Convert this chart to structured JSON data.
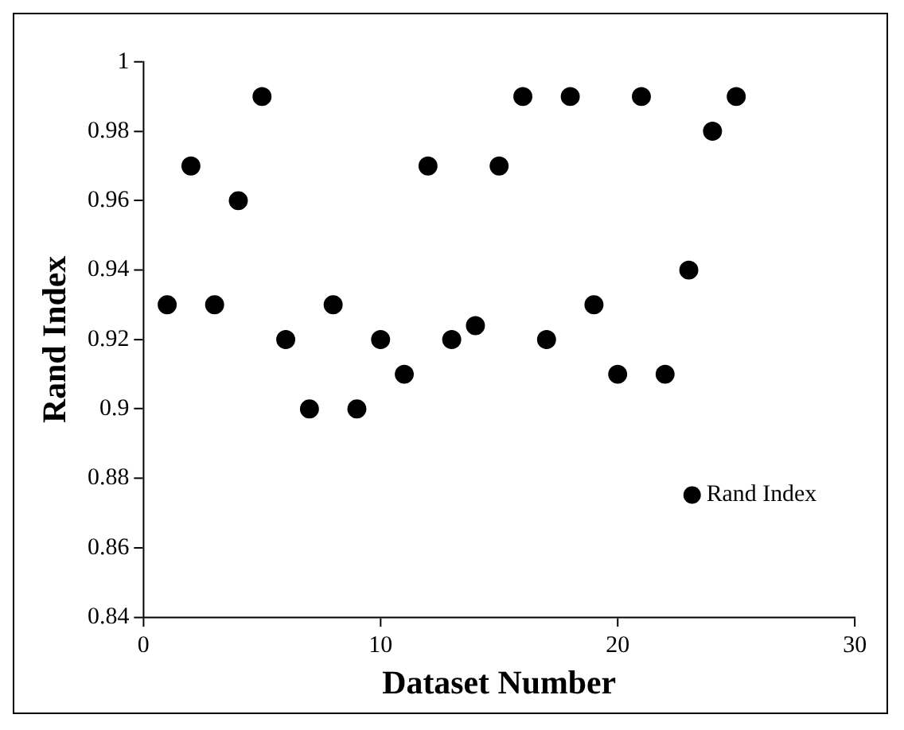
{
  "chart_data": {
    "type": "scatter",
    "xlabel": "Dataset Number",
    "ylabel": "Rand Index",
    "x": [
      1,
      2,
      3,
      4,
      5,
      6,
      7,
      8,
      9,
      10,
      11,
      12,
      13,
      14,
      15,
      16,
      17,
      18,
      19,
      20,
      21,
      22,
      23,
      24,
      25
    ],
    "series": [
      {
        "name": "Rand Index",
        "color": "#000000",
        "values": [
          0.93,
          0.97,
          0.93,
          0.96,
          0.99,
          0.92,
          0.9,
          0.93,
          0.9,
          0.92,
          0.91,
          0.97,
          0.92,
          0.924,
          0.97,
          0.99,
          0.92,
          0.99,
          0.93,
          0.91,
          0.99,
          0.91,
          0.94,
          0.98,
          0.99
        ]
      }
    ],
    "xlim": [
      0,
      30
    ],
    "xticks": [
      0,
      10,
      20,
      30
    ],
    "ylim": [
      0.84,
      1
    ],
    "yticks": [
      0.84,
      0.86,
      0.88,
      0.9,
      0.92,
      0.94,
      0.96,
      0.98,
      1
    ],
    "grid": false,
    "legend": "bottom right",
    "marker": "circle"
  }
}
